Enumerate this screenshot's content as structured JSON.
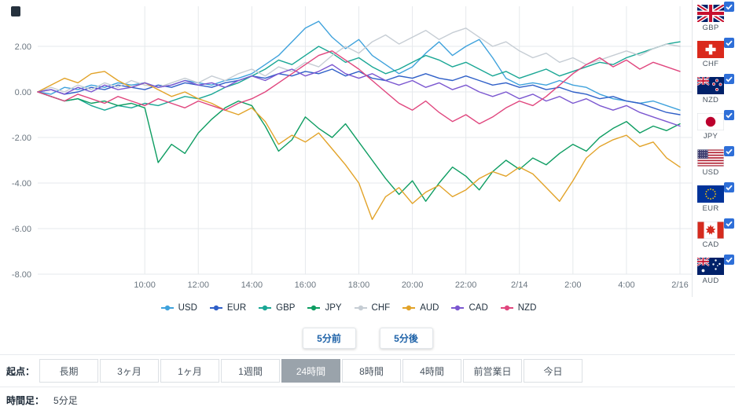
{
  "colors": {
    "checkbox_blue": "#2E6FD8",
    "step_button_text": "#1E62A8",
    "selected_period_bg": "#9AA3AB",
    "grid": "#E6E9EC",
    "axis_text": "#6B7680"
  },
  "icons": {
    "checkbox_checked": "check",
    "corner": "dark-square",
    "legend_marker": "line-with-dot"
  },
  "chart_data": {
    "type": "line",
    "title": "",
    "legend_position": "bottom",
    "grid": true,
    "sample_interval_hours": 0.5,
    "x_axis": {
      "range": [
        0,
        24.45
      ],
      "ticks": [
        {
          "t": 4,
          "label": "10:00"
        },
        {
          "t": 6,
          "label": "12:00"
        },
        {
          "t": 8,
          "label": "14:00"
        },
        {
          "t": 10,
          "label": "16:00"
        },
        {
          "t": 12,
          "label": "18:00"
        },
        {
          "t": 14,
          "label": "20:00"
        },
        {
          "t": 16,
          "label": "22:00"
        },
        {
          "t": 18,
          "label": "2/14"
        },
        {
          "t": 20,
          "label": "2:00"
        },
        {
          "t": 22,
          "label": "4:00"
        },
        {
          "t": 24,
          "label": "2/16"
        }
      ]
    },
    "y_axis": {
      "range": [
        -8.7,
        3.7
      ],
      "ticks": [
        {
          "v": 2,
          "label": "2.00"
        },
        {
          "v": 0,
          "label": "0.00"
        },
        {
          "v": -2,
          "label": "-2.00"
        },
        {
          "v": -4,
          "label": "-4.00"
        },
        {
          "v": -6,
          "label": "-6.00"
        },
        {
          "v": -8,
          "label": "-8.00"
        }
      ]
    },
    "series": [
      {
        "name": "USD",
        "color": "#3FA2DC",
        "values": [
          0,
          -0.1,
          0.2,
          0.1,
          0.3,
          0.2,
          0.4,
          0.3,
          0.4,
          0.2,
          0.3,
          0.5,
          0.4,
          0.3,
          0.5,
          0.6,
          0.8,
          1.2,
          1.6,
          2.2,
          2.8,
          3.1,
          2.4,
          1.9,
          2.3,
          1.6,
          1.2,
          0.8,
          1.1,
          1.7,
          2.2,
          1.6,
          2.0,
          2.3,
          1.5,
          0.6,
          0.3,
          0.4,
          0.3,
          0.5,
          0.3,
          0.2,
          -0.1,
          -0.3,
          -0.4,
          -0.5,
          -0.4,
          -0.6,
          -0.8
        ]
      },
      {
        "name": "EUR",
        "color": "#3060C8",
        "values": [
          0,
          0.1,
          -0.1,
          0,
          0.2,
          0.1,
          0.3,
          0.2,
          0.1,
          0.3,
          0.2,
          0.4,
          0.3,
          0.2,
          0.4,
          0.5,
          0.7,
          0.6,
          0.8,
          0.7,
          0.9,
          0.8,
          1.0,
          0.7,
          0.9,
          0.6,
          0.5,
          0.7,
          0.6,
          0.8,
          0.6,
          0.5,
          0.7,
          0.5,
          0.3,
          0.4,
          0.2,
          0.3,
          0.1,
          0.2,
          0,
          -0.1,
          -0.3,
          -0.2,
          -0.4,
          -0.5,
          -0.7,
          -0.9,
          -1.0
        ]
      },
      {
        "name": "GBP",
        "color": "#1AA795",
        "values": [
          0,
          -0.2,
          -0.4,
          -0.3,
          -0.6,
          -0.8,
          -0.6,
          -0.7,
          -0.5,
          -0.6,
          -0.4,
          -0.2,
          -0.3,
          -0.1,
          0.2,
          0.4,
          0.7,
          1.0,
          1.4,
          1.2,
          1.6,
          2.0,
          1.7,
          1.3,
          1.5,
          1.1,
          0.8,
          1.0,
          1.3,
          1.6,
          1.4,
          1.1,
          1.3,
          1.0,
          0.7,
          0.9,
          0.6,
          0.8,
          1.0,
          0.7,
          0.9,
          1.1,
          1.3,
          1.2,
          1.5,
          1.7,
          1.9,
          2.1,
          2.2
        ]
      },
      {
        "name": "JPY",
        "color": "#0E9D62",
        "values": [
          0,
          -0.2,
          -0.4,
          -0.3,
          -0.5,
          -0.4,
          -0.6,
          -0.5,
          -0.7,
          -3.1,
          -2.3,
          -2.7,
          -1.8,
          -1.2,
          -0.7,
          -0.4,
          -0.6,
          -1.5,
          -2.6,
          -2.1,
          -1.1,
          -1.6,
          -2.0,
          -1.4,
          -2.2,
          -3.0,
          -3.8,
          -4.5,
          -3.9,
          -4.8,
          -4.0,
          -3.3,
          -3.7,
          -4.3,
          -3.5,
          -3.0,
          -3.4,
          -2.9,
          -3.2,
          -2.7,
          -2.3,
          -2.6,
          -2.0,
          -1.6,
          -1.3,
          -1.8,
          -1.5,
          -1.7,
          -1.4
        ]
      },
      {
        "name": "CHF",
        "color": "#C6CDD4",
        "values": [
          0,
          0.2,
          0,
          0.3,
          0.1,
          0.4,
          0.2,
          0.5,
          0.3,
          0.2,
          0.4,
          0.6,
          0.4,
          0.7,
          0.5,
          0.8,
          1.0,
          0.7,
          1.1,
          0.9,
          1.3,
          1.1,
          1.6,
          2.0,
          1.7,
          2.2,
          2.5,
          2.1,
          2.4,
          2.7,
          2.3,
          2.6,
          2.8,
          2.4,
          2.0,
          2.2,
          1.8,
          1.5,
          1.7,
          1.3,
          1.5,
          1.2,
          1.4,
          1.6,
          1.8,
          1.6,
          1.9,
          2.1,
          2.0
        ]
      },
      {
        "name": "AUD",
        "color": "#E2A329",
        "values": [
          0,
          0.3,
          0.6,
          0.4,
          0.8,
          0.9,
          0.5,
          0.2,
          0.4,
          0.1,
          -0.2,
          0,
          -0.3,
          -0.5,
          -0.8,
          -1.0,
          -0.7,
          -1.3,
          -2.3,
          -1.9,
          -2.2,
          -1.8,
          -2.5,
          -3.2,
          -4.0,
          -5.6,
          -4.6,
          -4.2,
          -4.9,
          -4.4,
          -4.1,
          -4.6,
          -4.3,
          -3.8,
          -3.5,
          -3.7,
          -3.3,
          -3.6,
          -4.2,
          -4.8,
          -3.9,
          -2.9,
          -2.4,
          -2.1,
          -1.9,
          -2.4,
          -2.2,
          -2.9,
          -3.3
        ]
      },
      {
        "name": "CAD",
        "color": "#7B57D0",
        "values": [
          0,
          0.1,
          -0.1,
          0.2,
          0,
          0.3,
          0.1,
          0.2,
          0.4,
          0.2,
          0.3,
          0.5,
          0.3,
          0.4,
          0.2,
          0.5,
          0.7,
          0.5,
          0.8,
          1.0,
          0.7,
          0.9,
          1.2,
          0.8,
          0.6,
          0.8,
          0.5,
          0.3,
          0.5,
          0.2,
          0.4,
          0.1,
          0.3,
          0,
          -0.2,
          0,
          -0.3,
          -0.1,
          -0.4,
          -0.2,
          -0.5,
          -0.3,
          -0.6,
          -0.8,
          -0.6,
          -0.9,
          -1.1,
          -1.3,
          -1.5
        ]
      },
      {
        "name": "NZD",
        "color": "#E0467E",
        "values": [
          0,
          -0.2,
          -0.4,
          -0.1,
          -0.3,
          -0.5,
          -0.2,
          -0.4,
          -0.6,
          -0.3,
          -0.5,
          -0.7,
          -0.4,
          -0.6,
          -0.8,
          -0.5,
          -0.3,
          0,
          0.4,
          0.8,
          1.2,
          1.6,
          1.8,
          1.4,
          1.0,
          0.5,
          0,
          -0.5,
          -0.8,
          -0.4,
          -0.9,
          -1.3,
          -1.0,
          -1.4,
          -1.1,
          -0.7,
          -0.4,
          -0.6,
          -0.2,
          0.3,
          0.8,
          1.2,
          1.5,
          1.1,
          1.4,
          1.0,
          1.3,
          1.1,
          0.9
        ]
      }
    ]
  },
  "sidebar": {
    "items": [
      {
        "code": "GBP",
        "checked": true
      },
      {
        "code": "CHF",
        "checked": true
      },
      {
        "code": "NZD",
        "checked": true
      },
      {
        "code": "JPY",
        "checked": true
      },
      {
        "code": "USD",
        "checked": true
      },
      {
        "code": "EUR",
        "checked": true
      },
      {
        "code": "CAD",
        "checked": true
      },
      {
        "code": "AUD",
        "checked": true
      }
    ]
  },
  "controls": {
    "prev_button": "5分前",
    "next_button": "5分後",
    "origin_label": "起点：",
    "periods": [
      "長期",
      "3ヶ月",
      "1ヶ月",
      "1週間",
      "24時間",
      "8時間",
      "4時間",
      "前営業日",
      "今日"
    ],
    "selected_period": "24時間",
    "timeframe_label": "時間足：",
    "timeframe_value": "5分足"
  }
}
